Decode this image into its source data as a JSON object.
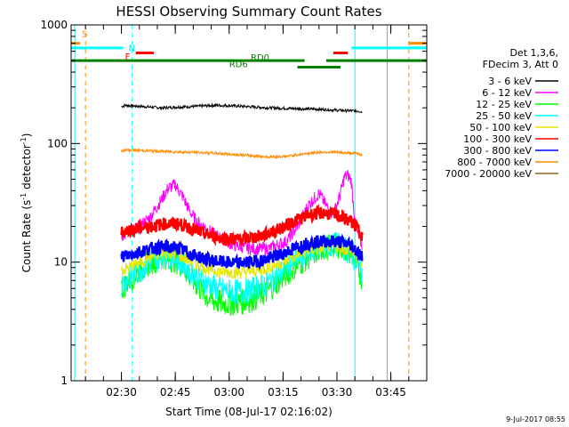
{
  "chart_data": {
    "type": "line",
    "title": "HESSI Observing Summary Count Rates",
    "xlabel": "Start Time (08-Jul-17 02:16:02)",
    "ylabel_main": "Count Rate (s",
    "ylabel_sup1": "-1",
    "ylabel_mid": " detector",
    "ylabel_sup2": "-1",
    "ylabel_end": ")",
    "footer_date": "9-Jul-2017 08:55",
    "x_axis": {
      "unit": "minutes since 02:16:02",
      "range": [
        0,
        99
      ]
    },
    "y_axis": {
      "scale": "log",
      "range": [
        1,
        1000
      ]
    },
    "x_ticks": [
      {
        "label": "02:30",
        "value": 14
      },
      {
        "label": "02:45",
        "value": 29
      },
      {
        "label": "03:00",
        "value": 44
      },
      {
        "label": "03:15",
        "value": 59
      },
      {
        "label": "03:30",
        "value": 74
      },
      {
        "label": "03:45",
        "value": 89
      }
    ],
    "y_ticks": [
      {
        "label": "1",
        "value": 1
      },
      {
        "label": "10",
        "value": 10
      },
      {
        "label": "100",
        "value": 100
      },
      {
        "label": "1000",
        "value": 1000
      }
    ],
    "legend": {
      "header": [
        "Det 1,3,6,",
        "FDecim 3, Att 0"
      ],
      "placement": "right"
    },
    "series": [
      {
        "name": "3 - 6 keV",
        "color": "#000000",
        "x": [
          14,
          15,
          20,
          25,
          30,
          35,
          40,
          45,
          50,
          55,
          60,
          65,
          70,
          75,
          80,
          81
        ],
        "y": [
          205,
          210,
          205,
          200,
          203,
          206,
          210,
          208,
          204,
          200,
          198,
          196,
          194,
          190,
          188,
          185
        ]
      },
      {
        "name": "6 - 12 keV",
        "color": "#ff00ff",
        "x": [
          14,
          16,
          19,
          22,
          25,
          27,
          29,
          31,
          33,
          35,
          40,
          45,
          50,
          55,
          60,
          63,
          66,
          69,
          71,
          73,
          75,
          76,
          77,
          78,
          79,
          80,
          81
        ],
        "y": [
          17,
          18,
          20,
          24,
          33,
          42,
          45,
          36,
          27,
          22,
          17,
          14,
          13,
          13,
          15,
          20,
          30,
          38,
          30,
          25,
          38,
          52,
          54,
          48,
          22,
          16,
          14
        ]
      },
      {
        "name": "12 - 25 keV",
        "color": "#00ff00",
        "x": [
          14,
          18,
          22,
          26,
          30,
          34,
          38,
          42,
          46,
          50,
          54,
          58,
          62,
          66,
          70,
          74,
          78,
          80,
          81
        ],
        "y": [
          6,
          8,
          10,
          11,
          10,
          7,
          5,
          4.5,
          4.5,
          4.8,
          5.5,
          7,
          9,
          11,
          13,
          14,
          12,
          9,
          7
        ]
      },
      {
        "name": "25 - 50 keV",
        "color": "#00ffff",
        "x": [
          14,
          18,
          22,
          26,
          30,
          34,
          38,
          42,
          46,
          50,
          54,
          58,
          62,
          66,
          70,
          74,
          78,
          80,
          81
        ],
        "y": [
          6.5,
          8,
          10,
          11.5,
          10.5,
          8,
          6.5,
          5.8,
          5.6,
          5.8,
          6.5,
          8,
          10,
          12,
          13.5,
          14,
          12,
          9.5,
          8
        ]
      },
      {
        "name": "50 - 100 keV",
        "color": "#e6e600",
        "x": [
          14,
          18,
          22,
          26,
          30,
          34,
          38,
          42,
          46,
          50,
          54,
          58,
          62,
          66,
          70,
          74,
          78,
          80,
          81
        ],
        "y": [
          8.5,
          9.5,
          11,
          12,
          11.5,
          10,
          8.8,
          8.3,
          8.2,
          8.3,
          8.8,
          9.8,
          11,
          12.5,
          13,
          13.5,
          12.5,
          10.5,
          9.5
        ]
      },
      {
        "name": "100 - 300 keV",
        "color": "#ff0000",
        "x": [
          14,
          18,
          22,
          26,
          30,
          34,
          38,
          42,
          46,
          50,
          54,
          58,
          62,
          66,
          70,
          74,
          78,
          80,
          81
        ],
        "y": [
          18,
          19,
          20,
          21,
          21,
          19,
          17,
          16,
          15.5,
          16,
          17,
          19,
          22,
          25,
          26,
          25,
          22,
          19,
          17
        ]
      },
      {
        "name": "300 - 800 keV",
        "color": "#0000ff",
        "x": [
          14,
          18,
          22,
          26,
          30,
          34,
          38,
          42,
          46,
          50,
          54,
          58,
          62,
          66,
          70,
          74,
          78,
          80,
          81
        ],
        "y": [
          11,
          12,
          13,
          13.5,
          13,
          11.5,
          10.5,
          10,
          9.8,
          10,
          10.5,
          11.5,
          13,
          14.5,
          15,
          15,
          14,
          12,
          11
        ]
      },
      {
        "name": "800 - 7000 keV",
        "color": "#ff8c00",
        "x": [
          14,
          15,
          20,
          25,
          30,
          35,
          40,
          45,
          50,
          55,
          60,
          65,
          70,
          75,
          80,
          81
        ],
        "y": [
          87,
          88,
          87,
          86,
          85,
          84,
          83,
          81,
          79,
          77,
          78,
          82,
          85,
          84,
          82,
          80
        ]
      },
      {
        "name": "7000 - 20000 keV",
        "color": "#8b6914",
        "x": [],
        "y": []
      }
    ],
    "annotations": [
      {
        "text": "S",
        "color": "#ff8c00",
        "x": 3,
        "y": 795
      },
      {
        "text": "N",
        "color": "#00d8d8",
        "x": 16,
        "y": 600
      },
      {
        "text": "F",
        "color": "#ff0000",
        "x": 15,
        "y": 510
      },
      {
        "text": "RD0",
        "color": "#008000",
        "x": 50,
        "y": 500
      },
      {
        "text": "RD6",
        "color": "#008000",
        "x": 44,
        "y": 440
      }
    ],
    "state_bars": [
      {
        "color": "#ff8c00",
        "x0": 0,
        "x1": 2.5,
        "y": 700
      },
      {
        "color": "#ff8c00",
        "x0": 94,
        "x1": 99,
        "y": 700
      },
      {
        "color": "#00ffff",
        "x0": 0,
        "x1": 14.5,
        "y": 640
      },
      {
        "color": "#00ffff",
        "x0": 78,
        "x1": 99,
        "y": 640
      },
      {
        "color": "#ff0000",
        "x0": 18,
        "x1": 23,
        "y": 580
      },
      {
        "color": "#ff0000",
        "x0": 73,
        "x1": 77,
        "y": 580
      },
      {
        "color": "#008000",
        "x0": 0,
        "x1": 65,
        "y": 500
      },
      {
        "color": "#008000",
        "x0": 71,
        "x1": 99,
        "y": 500
      },
      {
        "color": "#008000",
        "x0": 63,
        "x1": 75,
        "y": 440
      }
    ],
    "vertical_lines": [
      {
        "x": 1,
        "color": "#00ffff",
        "dashed": false
      },
      {
        "x": 4,
        "color": "#ff8c00",
        "dashed": true
      },
      {
        "x": 17,
        "color": "#00ffff",
        "dashed": true
      },
      {
        "x": 79,
        "color": "#00ffff",
        "dashed": false
      },
      {
        "x": 88,
        "color": "#ff8c00",
        "dashed": false
      },
      {
        "x": 94,
        "color": "#ff8c00",
        "dashed": true
      }
    ]
  }
}
